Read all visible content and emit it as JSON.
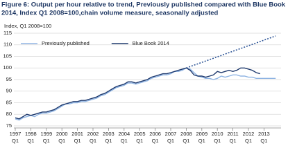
{
  "chart_data": {
    "type": "line",
    "title_lines": [
      "Figure 6: Output per hour relative to trend, Previously published compared with Blue Book",
      "2014, Index Q1 2008=100,chain volume measure, seasonally adjusted"
    ],
    "y_label": "Index, Q1 2008=100",
    "categories": [
      "1997",
      null,
      null,
      null,
      "1998",
      null,
      null,
      null,
      "1999",
      null,
      null,
      null,
      "2000",
      null,
      null,
      null,
      "2001",
      null,
      null,
      null,
      "2002",
      null,
      null,
      null,
      "2003",
      null,
      null,
      null,
      "2004",
      null,
      null,
      null,
      "2005",
      null,
      null,
      null,
      "2006",
      null,
      null,
      null,
      "2007",
      null,
      null,
      null,
      "2008",
      null,
      null,
      null,
      "2009",
      null,
      null,
      null,
      "2010",
      null,
      null,
      null,
      "2011",
      null,
      null,
      null,
      "2012",
      null,
      null,
      null,
      "2013",
      null,
      null,
      null
    ],
    "category_sublabel": "Q1",
    "ylim": [
      75,
      115
    ],
    "yticks": [
      75,
      80,
      85,
      90,
      95,
      100,
      105,
      110,
      115
    ],
    "grid": true,
    "legend": "top-left",
    "series": [
      {
        "name": "Previously published",
        "color": "#8fb4e3",
        "values": [
          78,
          77.5,
          78.5,
          79,
          79.5,
          79,
          80,
          80.5,
          80.5,
          81,
          81.5,
          82.5,
          83.5,
          84.5,
          84.5,
          85,
          85,
          85.5,
          85.5,
          86,
          86.5,
          87,
          88,
          88.5,
          89.5,
          90.5,
          91.5,
          92,
          92.5,
          93.5,
          93.5,
          93,
          93.5,
          94,
          94.5,
          95.5,
          96,
          96.5,
          97,
          97,
          97.5,
          98.5,
          98.5,
          99,
          100,
          99.5,
          98,
          96.5,
          96,
          95.5,
          95.5,
          95,
          95.5,
          96.5,
          96,
          96.5,
          97,
          97,
          96.5,
          96.5,
          96,
          96,
          95.5,
          95.5,
          95.5,
          95.5,
          95.5,
          95.5
        ]
      },
      {
        "name": "Blue Book 2014",
        "color": "#1f3a6e",
        "values": [
          78.5,
          78,
          79,
          80,
          79.5,
          80,
          80.5,
          81,
          81,
          81.5,
          82,
          83,
          84,
          84.5,
          85,
          85.5,
          85.5,
          86,
          86,
          86.5,
          87,
          87.5,
          88.5,
          89,
          90,
          91,
          92,
          92.5,
          93,
          94,
          94,
          93.5,
          94,
          94.5,
          95,
          96,
          96.5,
          97,
          97.5,
          97.5,
          98,
          98.5,
          99,
          99.5,
          100,
          99,
          97,
          96.5,
          96.5,
          96,
          96.5,
          97,
          98.5,
          98,
          98.5,
          99,
          98.5,
          99,
          100,
          100,
          99.5,
          99,
          98,
          97.5,
          null,
          null,
          null,
          null
        ]
      },
      {
        "color": "#2e5597",
        "dash": "dotted",
        "values": [
          null,
          null,
          null,
          null,
          null,
          null,
          null,
          null,
          null,
          null,
          null,
          null,
          null,
          null,
          null,
          null,
          null,
          null,
          null,
          null,
          null,
          null,
          null,
          null,
          null,
          null,
          null,
          null,
          null,
          null,
          null,
          null,
          null,
          null,
          null,
          null,
          null,
          null,
          null,
          null,
          null,
          null,
          null,
          null,
          100,
          100.6,
          101.2,
          101.8,
          102.4,
          103,
          103.6,
          104.2,
          104.8,
          105.4,
          106,
          106.6,
          107.2,
          107.8,
          108.4,
          109,
          109.6,
          110.2,
          110.8,
          111.4,
          112,
          112.6,
          113.2,
          113.8
        ]
      }
    ]
  }
}
